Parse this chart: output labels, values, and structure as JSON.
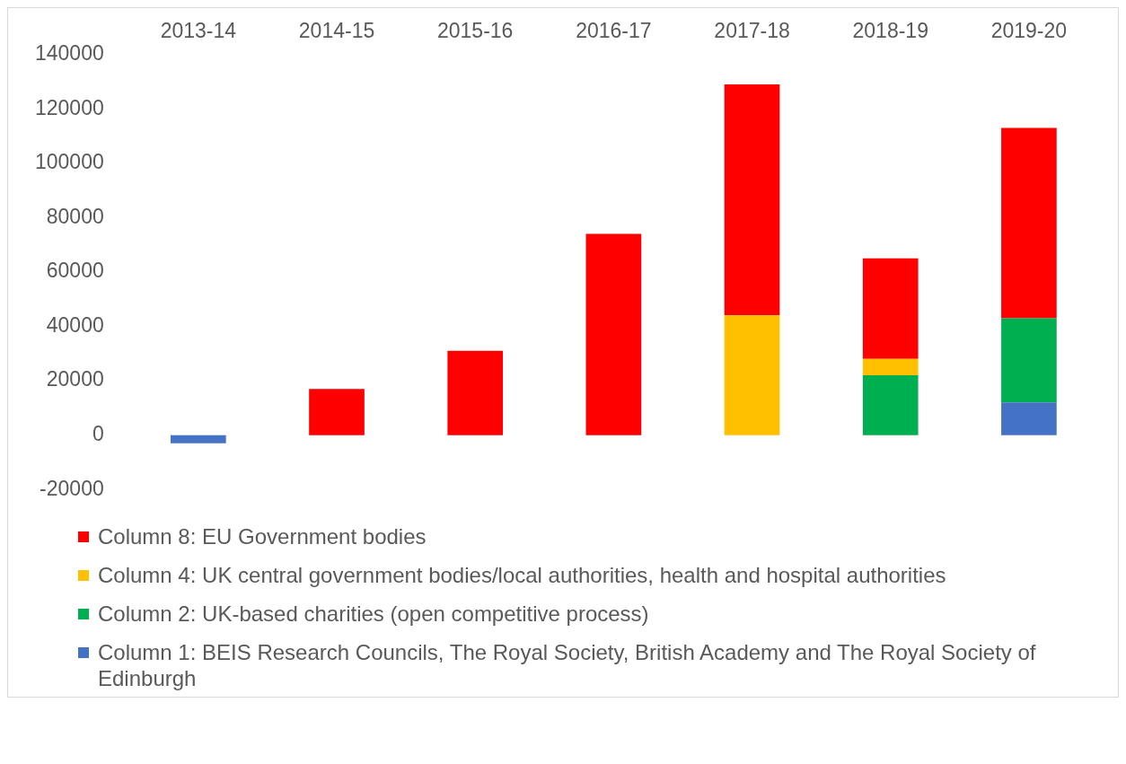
{
  "chart_data": {
    "type": "bar",
    "stacked": true,
    "categories": [
      "2013-14",
      "2014-15",
      "2015-16",
      "2016-17",
      "2017-18",
      "2018-19",
      "2019-20"
    ],
    "series": [
      {
        "name": "Column 1: BEIS Research Councils, The Royal Society, British Academy and The Royal Society of Edinburgh",
        "color": "#4472c4",
        "values": [
          -3000,
          0,
          0,
          0,
          0,
          0,
          12000
        ]
      },
      {
        "name": "Column 2: UK-based charities (open competitive process)",
        "color": "#00b050",
        "values": [
          0,
          0,
          0,
          0,
          0,
          22000,
          31000
        ]
      },
      {
        "name": "Column 4: UK central government bodies/local authorities, health and hospital authorities",
        "color": "#ffc000",
        "values": [
          0,
          0,
          0,
          0,
          44000,
          6000,
          0
        ]
      },
      {
        "name": "Column 8: EU Government bodies",
        "color": "#ff0000",
        "values": [
          0,
          17000,
          31000,
          74000,
          85000,
          37000,
          70000
        ]
      }
    ],
    "ylim": [
      -20000,
      140000
    ],
    "yticks": [
      -20000,
      0,
      20000,
      40000,
      60000,
      80000,
      100000,
      120000,
      140000
    ],
    "grid": false,
    "legend": "bottom"
  }
}
